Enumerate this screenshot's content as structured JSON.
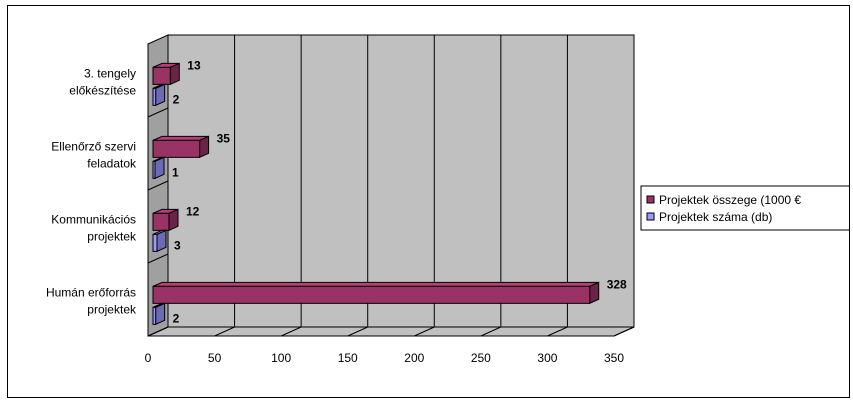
{
  "chart_data": {
    "type": "bar",
    "orientation": "horizontal",
    "style": "3d",
    "categories": [
      [
        "Humán erőforrás",
        "projektek"
      ],
      [
        "Kommunikációs",
        "projektek"
      ],
      [
        "Ellenőrző szervi",
        "feladatok"
      ],
      [
        "3. tengely",
        "előkészítése"
      ]
    ],
    "series": [
      {
        "name": "Projektek összege (1000 €",
        "values": [
          328,
          12,
          35,
          13
        ],
        "color": "#993366"
      },
      {
        "name": "Projektek száma (db)",
        "values": [
          2,
          3,
          1,
          2
        ],
        "color": "#9999ff"
      }
    ],
    "xlim": [
      0,
      350
    ],
    "xticks": [
      0,
      50,
      100,
      150,
      200,
      250,
      300,
      350
    ],
    "grid": true,
    "legend_position": "right",
    "wall_color": "#c0c0c0"
  }
}
